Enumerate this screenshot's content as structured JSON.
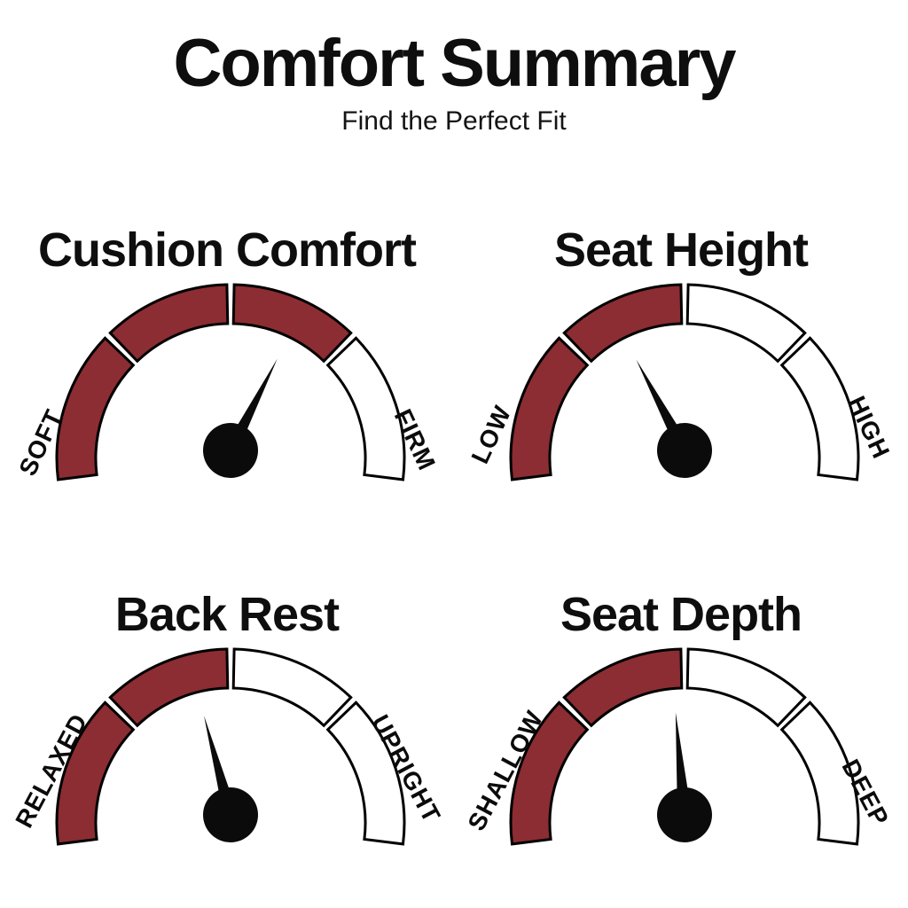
{
  "page": {
    "title": "Comfort Summary",
    "subtitle": "Find the Perfect Fit"
  },
  "colors": {
    "filled": "#8B2D33",
    "unfilled": "#FFFFFF",
    "outline": "#000000",
    "needle": "#0B0B0B",
    "text": "#0E0E0E",
    "background": "#FFFFFF"
  },
  "chart_data": {
    "type": "gauge",
    "title": "Comfort Summary",
    "subtitle": "Find the Perfect Fit",
    "scale_note": "each dial is a half-circle split into 4 segments; needle 0% = left end, 100% = right end",
    "gauges": [
      {
        "name": "Cushion Comfort",
        "min_label": "SOFT",
        "max_label": "FIRM",
        "segments": 4,
        "filled_segments": 3,
        "fill_percent": 75,
        "needle_angle_deg": 63,
        "needle_percent": 65
      },
      {
        "name": "Seat Height",
        "min_label": "LOW",
        "max_label": "HIGH",
        "segments": 4,
        "filled_segments": 2,
        "fill_percent": 50,
        "needle_angle_deg": 118,
        "needle_percent": 34
      },
      {
        "name": "Back Rest",
        "min_label": "RELAXED",
        "max_label": "UPRIGHT",
        "segments": 4,
        "filled_segments": 2,
        "fill_percent": 50,
        "needle_angle_deg": 105,
        "needle_percent": 42
      },
      {
        "name": "Seat Depth",
        "min_label": "SHALLOW",
        "max_label": "DEEP",
        "segments": 4,
        "filled_segments": 2,
        "fill_percent": 50,
        "needle_angle_deg": 95,
        "needle_percent": 47
      }
    ]
  }
}
